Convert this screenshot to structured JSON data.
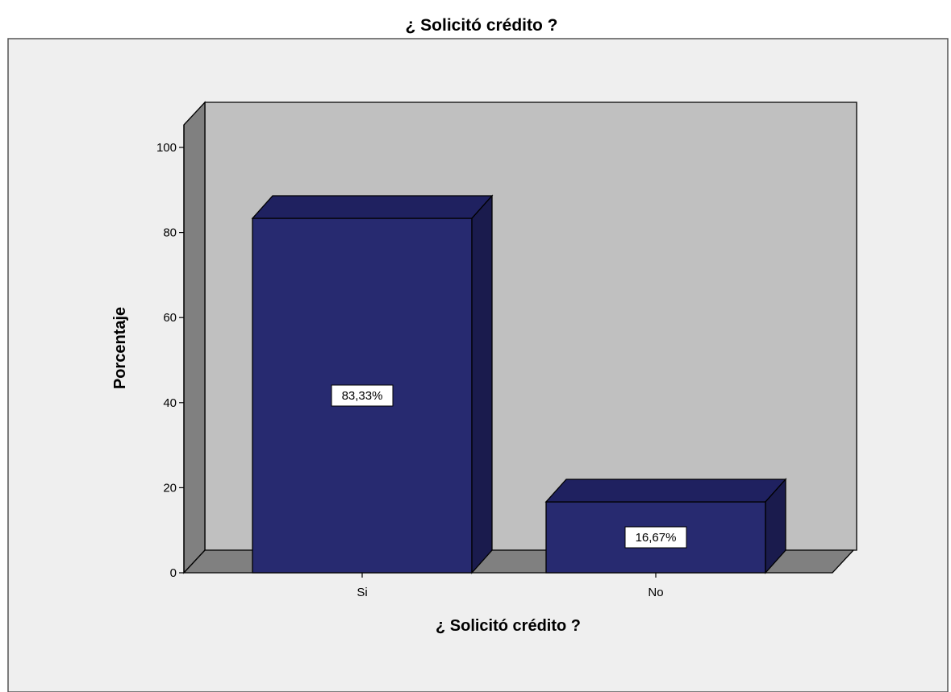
{
  "chart_data": {
    "type": "bar",
    "title": "¿ Solicitó crédito ?",
    "xlabel": "¿ Solicitó crédito ?",
    "ylabel": "Porcentaje",
    "categories": [
      "Si",
      "No"
    ],
    "values": [
      83.33,
      16.67
    ],
    "data_labels": [
      "83,33%",
      "16,67%"
    ],
    "ylim": [
      0,
      100
    ],
    "yticks": [
      0,
      20,
      40,
      60,
      80,
      100
    ],
    "grid": false,
    "style": "3d",
    "colors": {
      "bar_front": "#272a70",
      "bar_top": "#1f2160",
      "bar_side": "#1a1b4d",
      "back_wall": "#c0c0c0",
      "side_wall": "#808080",
      "floor": "#808080",
      "outer_frame": "#efefef"
    }
  }
}
